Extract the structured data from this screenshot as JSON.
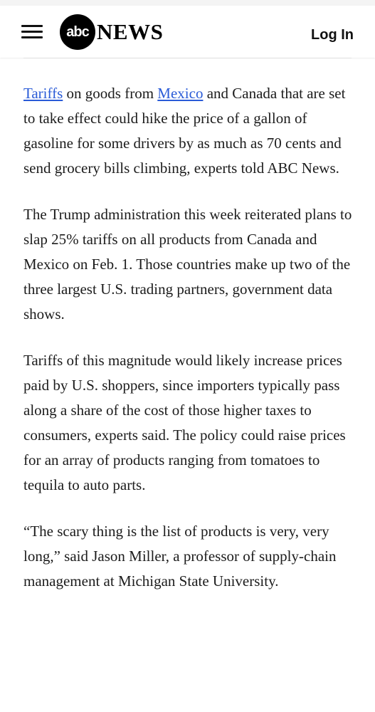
{
  "header": {
    "logo_badge": "abc",
    "logo_word": "NEWS",
    "login_label": "Log In",
    "menu_icon": "hamburger-menu-icon"
  },
  "article": {
    "p1": {
      "link_tariffs": "Tariffs",
      "text_a": " on goods from ",
      "link_mexico": "Mexico",
      "text_b": " and Canada that are set to take effect could hike the price of a gallon of gasoline for some drivers by as much as 70 cents and send grocery bills climbing, experts told ABC News."
    },
    "p2": "The Trump administration this week reiterated plans to slap 25% tariffs on all products from Canada and Mexico on Feb. 1. Those countries make up two of the three largest U.S. trading partners, government data shows.",
    "p3": "Tariffs of this magnitude would likely increase prices paid by U.S. shoppers, since importers typically pass along a share of the cost of those higher taxes to consumers, experts said. The policy could raise prices for an array of products ranging from tomatoes to tequila to auto parts.",
    "p4": "“The scary thing is the list of products is very, very long,” said Jason Miller, a professor of supply-chain management at Michigan State University."
  },
  "colors": {
    "link": "#2a5bd7",
    "text": "#1c1c1c"
  }
}
